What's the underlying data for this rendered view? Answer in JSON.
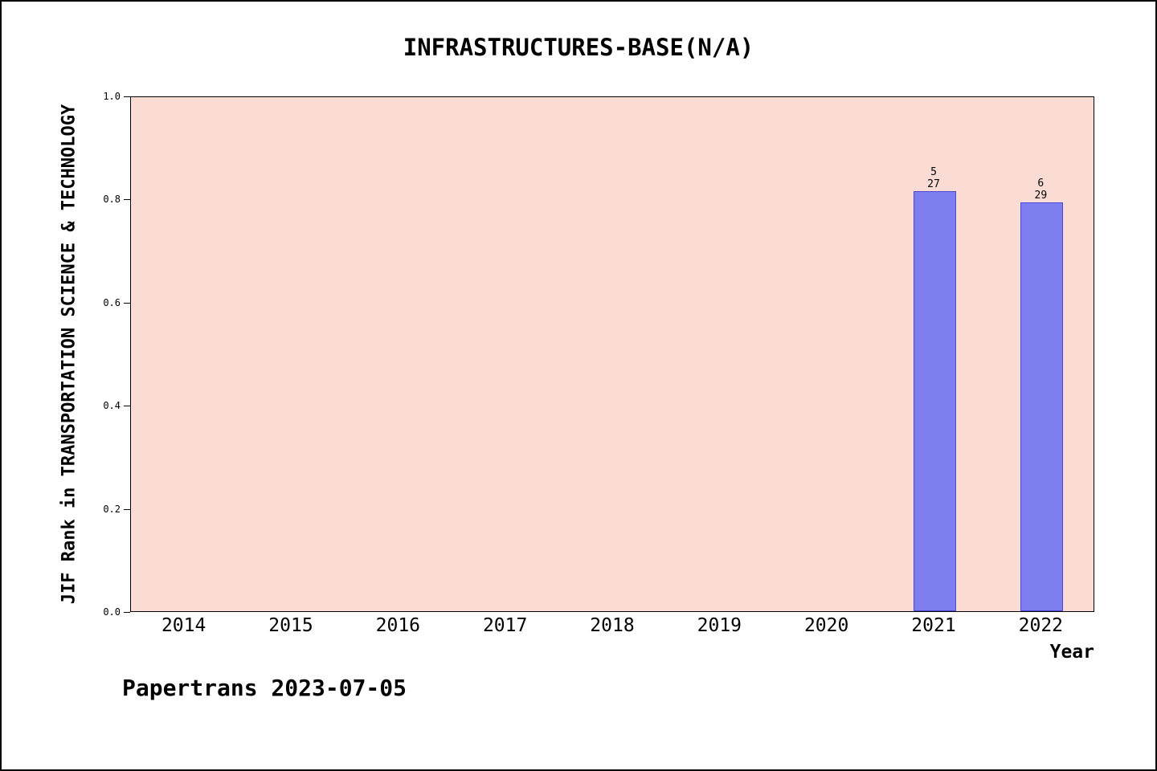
{
  "title": "INFRASTRUCTURES-BASE(N/A)",
  "footer": "Papertrans 2023-07-05",
  "chart_data": {
    "type": "bar",
    "title": "INFRASTRUCTURES-BASE(N/A)",
    "xlabel": "Year",
    "ylabel": "JIF Rank in TRANSPORTATION SCIENCE & TECHNOLOGY",
    "categories": [
      "2014",
      "2015",
      "2016",
      "2017",
      "2018",
      "2019",
      "2020",
      "2021",
      "2022"
    ],
    "ylim": [
      0.0,
      1.0
    ],
    "yticks": [
      0.0,
      0.2,
      0.4,
      0.6,
      0.8,
      1.0
    ],
    "grid": false,
    "bars": [
      {
        "category": "2021",
        "value": 0.815,
        "label": [
          "5",
          "27"
        ]
      },
      {
        "category": "2022",
        "value": 0.793,
        "label": [
          "6",
          "29"
        ]
      }
    ],
    "colors": {
      "bar": "#7e7ef0",
      "bar_edge": "#4a4ad0",
      "plot_bg": "#fbdcd4"
    }
  }
}
